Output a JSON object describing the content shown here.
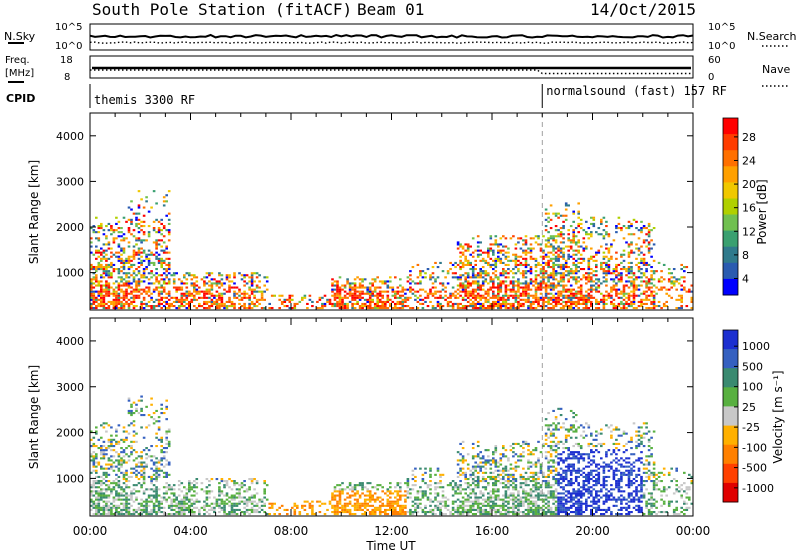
{
  "header": {
    "station": "South Pole Station (fitACF)",
    "beam": "Beam 01",
    "date": "14/Oct/2015"
  },
  "noise_panel": {
    "left_label": "N.Sky",
    "left_ticks": [
      "10^5",
      "10^0"
    ],
    "right_ticks": [
      "10^5",
      "10^0"
    ],
    "right_label": "N.Search"
  },
  "freq_panel": {
    "left_label_1": "Freq.",
    "left_label_2": "[MHz]",
    "left_ticks": [
      "18",
      "8"
    ],
    "right_ticks": [
      "60",
      "0"
    ],
    "right_label": "Nave"
  },
  "cpid_panel": {
    "label": "CPID",
    "programs": [
      {
        "name": "themis 3300 RF",
        "start_hour": 0
      },
      {
        "name": "normalsound (fast) 157 RF",
        "start_hour": 18
      }
    ]
  },
  "chart_data": [
    {
      "type": "heatmap",
      "title": "Power",
      "ylabel": "Slant Range [km]",
      "xlabel": "Time UT",
      "xlim": [
        0,
        24
      ],
      "ylim": [
        180,
        4500
      ],
      "x_tick_labels": [
        "00:00",
        "04:00",
        "08:00",
        "12:00",
        "16:00",
        "20:00",
        "00:00"
      ],
      "y_ticks": [
        1000,
        2000,
        3000,
        4000
      ],
      "colorbar": {
        "label": "Power [dB]",
        "ticks": [
          "28",
          "24",
          "20",
          "16",
          "12",
          "8",
          "4"
        ],
        "colors": [
          "#ff0000",
          "#ff3c00",
          "#ff7000",
          "#ffa000",
          "#f0c800",
          "#b0d000",
          "#70c050",
          "#3aa070",
          "#307a8c",
          "#2a5bb0",
          "#0000ff"
        ]
      }
    },
    {
      "type": "heatmap",
      "title": "Velocity",
      "ylabel": "Slant Range [km]",
      "xlabel": "Time UT",
      "xlim": [
        0,
        24
      ],
      "ylim": [
        180,
        4500
      ],
      "x_tick_labels": [
        "00:00",
        "04:00",
        "08:00",
        "12:00",
        "16:00",
        "20:00",
        "00:00"
      ],
      "y_ticks": [
        1000,
        2000,
        3000,
        4000
      ],
      "colorbar": {
        "label": "Velocity [m s⁻¹]",
        "ticks": [
          "1000",
          "500",
          "100",
          "25",
          "-25",
          "-100",
          "-500",
          "-1000"
        ],
        "colors": [
          "#1c2fd0",
          "#3560c0",
          "#3a8a70",
          "#58b040",
          "#c8c8c8",
          "#ffb000",
          "#ff8000",
          "#ff4000",
          "#e00000"
        ]
      }
    }
  ]
}
